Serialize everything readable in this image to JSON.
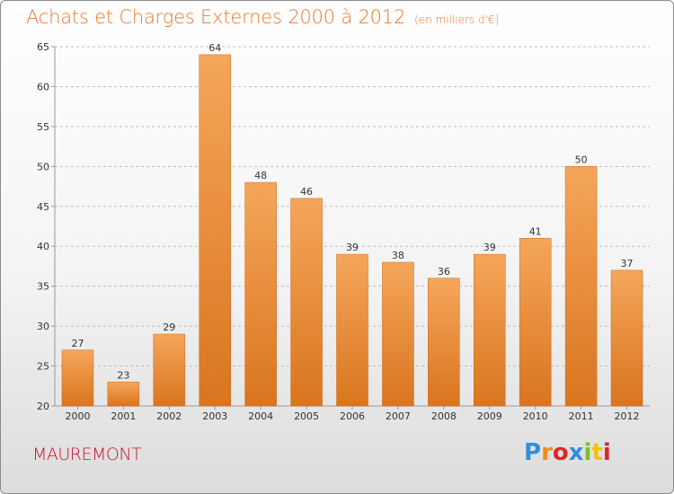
{
  "header": {
    "title": "Achats et Charges Externes 2000 à 2012",
    "unit": "(en milliers d'€)"
  },
  "footer": {
    "commune": "MAUREMONT",
    "logo_text": "Proxiti",
    "logo_colors": [
      "#2f8fd8",
      "#f28c1e",
      "#e0262b",
      "#2f8fd8",
      "#7bbf2a",
      "#f2c300",
      "#e0262b"
    ]
  },
  "colors": {
    "bar_light": "#f5a65a",
    "bar_dark": "#d9751f",
    "title": "#e8782a",
    "commune": "#c8102e",
    "axis": "#999999",
    "grid": "#bdbdbd"
  },
  "chart_data": {
    "type": "bar",
    "categories": [
      "2000",
      "2001",
      "2002",
      "2003",
      "2004",
      "2005",
      "2006",
      "2007",
      "2008",
      "2009",
      "2010",
      "2011",
      "2012"
    ],
    "values": [
      27,
      23,
      29,
      64,
      48,
      46,
      39,
      38,
      36,
      39,
      41,
      50,
      37
    ],
    "ylim": [
      20,
      65
    ],
    "yticks": [
      20,
      25,
      30,
      35,
      40,
      45,
      50,
      55,
      60,
      65
    ],
    "grid": "horizontal dashed",
    "data_labels": true
  }
}
